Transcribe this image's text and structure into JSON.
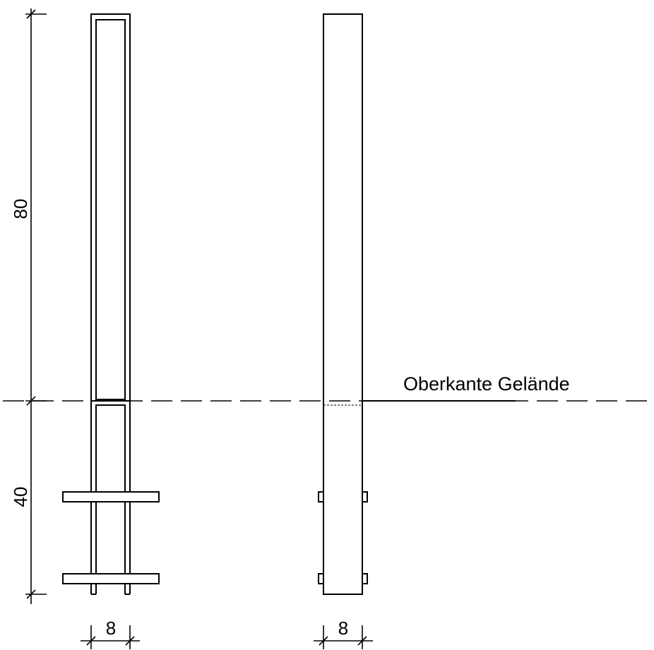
{
  "dimensions": {
    "height_above_ground": "80",
    "depth_below_ground": "40",
    "width_front_view": "8",
    "width_side_view": "8"
  },
  "labels": {
    "ground_level": "Oberkante Gelände"
  }
}
